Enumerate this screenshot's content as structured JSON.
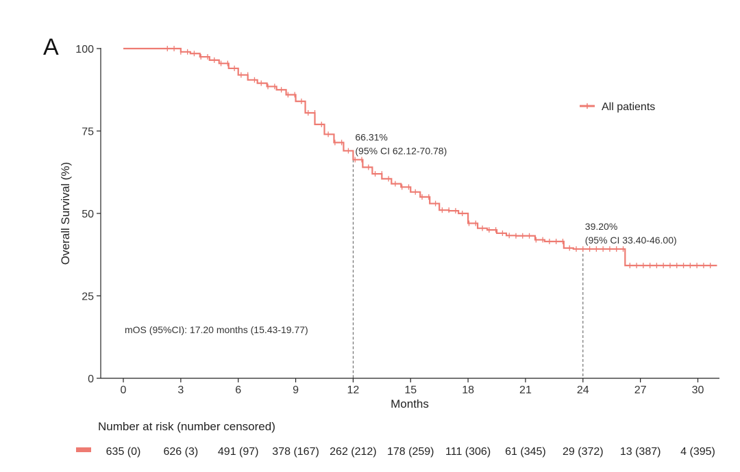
{
  "chart_data": {
    "type": "line",
    "panel_label": "A",
    "xlabel": "Months",
    "ylabel": "Overall Survival (%)",
    "xlim": [
      -1,
      31
    ],
    "ylim": [
      0,
      100
    ],
    "x_ticks": [
      0,
      3,
      6,
      9,
      12,
      15,
      18,
      21,
      24,
      27,
      30
    ],
    "y_ticks": [
      0,
      25,
      50,
      75,
      100
    ],
    "grid": false,
    "legend_position": "top-right",
    "color": "#EE7B72",
    "series": [
      {
        "name": "All patients",
        "x": [
          0,
          2.2,
          3,
          3.5,
          4,
          4.5,
          5,
          5.5,
          6,
          6.5,
          7,
          7.5,
          8,
          8.5,
          9,
          9.5,
          10,
          10.5,
          11,
          11.5,
          12,
          12.5,
          13,
          13.5,
          14,
          14.5,
          15,
          15.5,
          16,
          16.5,
          17,
          17.5,
          18,
          18.5,
          19,
          19.5,
          20,
          20.5,
          21,
          21.5,
          22,
          22.5,
          23,
          23.5,
          24,
          24.5,
          25,
          25.5,
          26.2,
          27,
          28,
          29,
          30,
          31
        ],
        "y": [
          100,
          100,
          99,
          98.5,
          97.5,
          96.5,
          95.5,
          94,
          92,
          90.5,
          89.5,
          88.5,
          87.5,
          86,
          84,
          80.5,
          77,
          74,
          71.5,
          69,
          66.3,
          64,
          62,
          60.5,
          59,
          58,
          56.5,
          55,
          53,
          51,
          50.8,
          50,
          47,
          45.5,
          45,
          44,
          43.3,
          43.2,
          43.2,
          42,
          41.5,
          41.5,
          39.5,
          39.2,
          39.2,
          39.2,
          39.2,
          39.2,
          34.2,
          34.2,
          34.2,
          34.2,
          34.2,
          34.2
        ]
      }
    ],
    "annotations": [
      {
        "x": 12,
        "y": 66.31,
        "line1": "66.31%",
        "line2": "(95% CI 62.12-70.78)"
      },
      {
        "x": 24,
        "y": 39.2,
        "line1": "39.20%",
        "line2": "(95% CI 33.40-46.00)"
      }
    ],
    "median_text": "mOS (95%CI): 17.20 months (15.43-19.77)",
    "risk_table": {
      "title": "Number at risk (number censored)",
      "values": [
        "635 (0)",
        "626 (3)",
        "491 (97)",
        "378 (167)",
        "262 (212)",
        "178 (259)",
        "111 (306)",
        "61 (345)",
        "29 (372)",
        "13 (387)",
        "4 (395)"
      ]
    }
  }
}
